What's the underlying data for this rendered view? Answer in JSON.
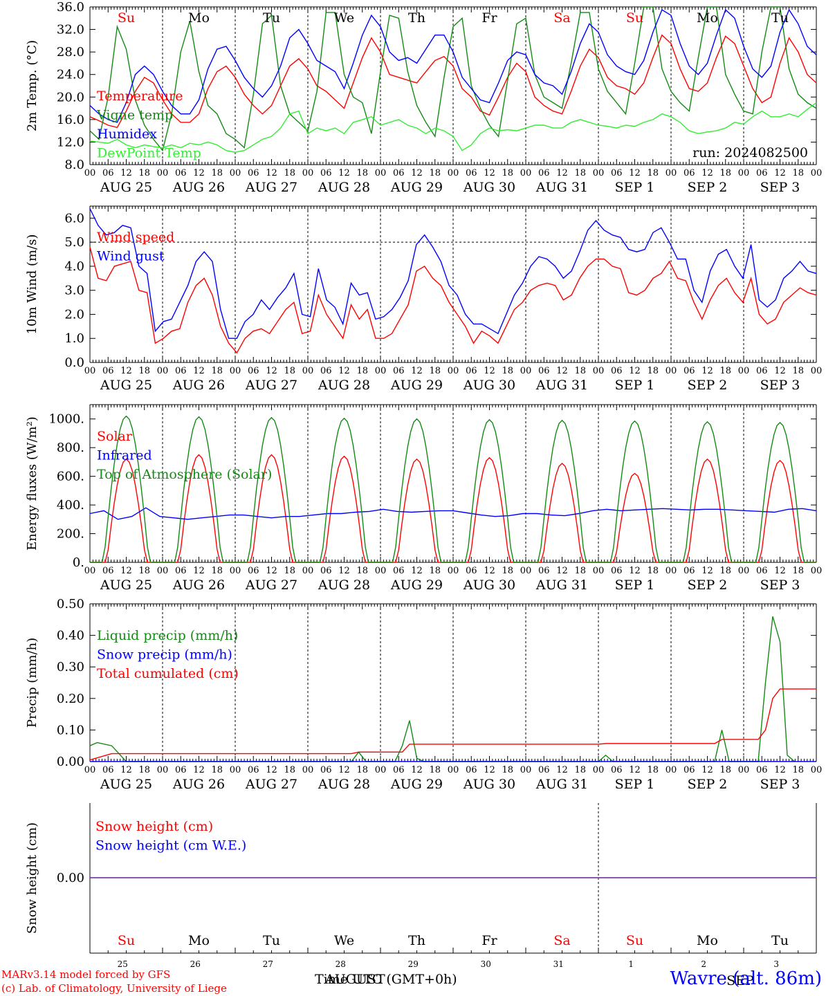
{
  "meta": {
    "run_label": "run: 2024082500",
    "credit_line1": "MARv3.14 model forced by GFS",
    "credit_line2": "(c) Lab. of Climatology, University of Liege",
    "time_axis_title": "Time UTC (GMT+0h)",
    "time_axis_under": "AUGUST",
    "time_axis_under2": "SEP",
    "station": "Wavre (alt. 86m)"
  },
  "colors": {
    "red": "#ff0000",
    "blue": "#0000ff",
    "darkgreen": "#138a13",
    "lightgreen": "#33ee33",
    "purple": "#7b3fa0"
  },
  "days": {
    "weekday_labels": [
      "Su",
      "Mo",
      "Tu",
      "We",
      "Th",
      "Fr",
      "Sa",
      "Su",
      "Mo",
      "Tu"
    ],
    "weekday_colors": [
      "red",
      "black",
      "black",
      "black",
      "black",
      "black",
      "red",
      "red",
      "black",
      "black"
    ],
    "date_labels": [
      "AUG 25",
      "AUG 26",
      "AUG 27",
      "AUG 28",
      "AUG 29",
      "AUG 30",
      "AUG 31",
      "SEP  1",
      "SEP  2",
      "SEP  3"
    ],
    "hour_ticks": [
      "00",
      "06",
      "12",
      "18"
    ],
    "final_tick": "00",
    "day_numbers": [
      "25",
      "26",
      "27",
      "28",
      "29",
      "30",
      "31",
      "1",
      "2",
      "3"
    ]
  },
  "chart_data": [
    {
      "type": "line",
      "ylabel": "2m Temp. (°C)",
      "ylim": [
        8,
        36
      ],
      "yticks": [
        "8.0",
        "12.0",
        "16.0",
        "20.0",
        "24.0",
        "28.0",
        "32.0",
        "36.0"
      ],
      "grid": "vertical dashed day lines",
      "legend_position": "left",
      "series": [
        {
          "name": "Temperature",
          "color": "red",
          "values": [
            16.5,
            15.8,
            15.0,
            14.6,
            17.5,
            21.0,
            23.5,
            22.5,
            19.5,
            17.0,
            15.5,
            15.5,
            17.0,
            21.5,
            24.5,
            25.5,
            23.5,
            20.5,
            18.5,
            17.0,
            18.5,
            22.0,
            25.5,
            26.8,
            25.0,
            22.0,
            21.0,
            19.5,
            18.0,
            22.5,
            27.0,
            30.5,
            28.0,
            24.0,
            23.5,
            23.0,
            22.5,
            24.5,
            26.5,
            27.2,
            25.5,
            21.5,
            20.0,
            17.5,
            16.8,
            20.0,
            23.5,
            26.0,
            24.5,
            20.0,
            18.5,
            17.5,
            17.0,
            21.0,
            25.5,
            28.5,
            27.0,
            23.5,
            22.0,
            21.5,
            20.5,
            22.5,
            27.0,
            31.0,
            29.5,
            25.0,
            21.5,
            21.0,
            22.5,
            27.0,
            30.8,
            29.5,
            25.5,
            21.5,
            19.0,
            20.0,
            26.0,
            30.5,
            28.0,
            24.0,
            22.5
          ]
        },
        {
          "name": "Vigne temp",
          "color": "darkgreen",
          "values": [
            14.0,
            12.5,
            20.0,
            32.5,
            28.5,
            19.5,
            15.0,
            12.5,
            10.5,
            17.0,
            28.0,
            33.5,
            24.5,
            18.5,
            17.0,
            13.5,
            12.5,
            11.0,
            20.5,
            33.0,
            34.5,
            22.0,
            17.0,
            15.5,
            14.0,
            21.0,
            35.0,
            35.0,
            24.0,
            20.0,
            19.0,
            13.5,
            24.5,
            34.5,
            34.0,
            24.5,
            18.5,
            15.5,
            13.0,
            23.5,
            32.5,
            34.0,
            22.0,
            18.0,
            15.0,
            13.0,
            23.0,
            33.0,
            34.0,
            24.0,
            20.0,
            19.0,
            18.0,
            26.0,
            35.0,
            35.0,
            25.0,
            21.0,
            19.0,
            17.0,
            26.0,
            36.0,
            36.0,
            25.0,
            21.0,
            19.0,
            17.5,
            27.0,
            36.0,
            36.0,
            24.0,
            20.5,
            17.5,
            17.0,
            28.0,
            36.0,
            36.0,
            25.0,
            20.5,
            19.0,
            18.0
          ]
        },
        {
          "name": "Humidex",
          "color": "blue",
          "values": [
            18.5,
            17.0,
            16.0,
            15.5,
            19.0,
            24.0,
            25.5,
            24.0,
            21.0,
            18.5,
            17.0,
            17.0,
            19.5,
            25.0,
            28.5,
            29.0,
            26.5,
            23.5,
            21.5,
            20.0,
            22.0,
            25.5,
            30.5,
            32.0,
            29.5,
            26.5,
            25.5,
            24.5,
            21.5,
            26.0,
            31.0,
            34.5,
            32.5,
            28.0,
            26.5,
            27.0,
            26.0,
            28.5,
            31.0,
            31.0,
            28.0,
            23.5,
            21.5,
            19.5,
            19.0,
            22.5,
            26.5,
            28.0,
            27.5,
            24.0,
            22.5,
            22.0,
            20.5,
            24.5,
            29.5,
            33.0,
            31.5,
            27.5,
            25.5,
            24.5,
            24.0,
            26.5,
            31.5,
            35.5,
            34.5,
            29.5,
            25.5,
            24.0,
            26.0,
            31.0,
            35.5,
            34.0,
            29.0,
            25.0,
            23.5,
            25.5,
            31.5,
            35.5,
            33.0,
            29.0,
            27.5
          ]
        },
        {
          "name": "DewPoint Temp",
          "color": "lightgreen",
          "values": [
            12.2,
            12.0,
            11.8,
            12.5,
            11.5,
            11.0,
            11.5,
            11.2,
            11.0,
            11.5,
            11.0,
            11.8,
            11.5,
            12.0,
            11.5,
            10.5,
            10.2,
            10.5,
            11.5,
            12.5,
            13.0,
            14.5,
            17.0,
            17.5,
            13.5,
            14.5,
            14.0,
            14.5,
            13.5,
            15.5,
            16.0,
            16.5,
            15.0,
            15.5,
            16.0,
            15.0,
            14.5,
            13.5,
            14.5,
            14.0,
            13.0,
            10.5,
            11.5,
            13.5,
            14.5,
            14.0,
            14.2,
            14.0,
            14.5,
            15.0,
            15.0,
            14.5,
            14.5,
            15.5,
            16.0,
            15.5,
            15.0,
            14.8,
            14.5,
            15.0,
            14.8,
            15.5,
            16.0,
            17.0,
            16.5,
            15.5,
            14.0,
            13.5,
            13.8,
            14.0,
            14.5,
            15.5,
            15.2,
            16.5,
            17.5,
            16.5,
            16.5,
            17.0,
            16.5,
            17.8,
            19.0
          ]
        }
      ]
    },
    {
      "type": "line",
      "ylabel": "10m Wind (m/s)",
      "ylim": [
        0,
        6.5
      ],
      "yticks": [
        "0.0",
        "1.0",
        "2.0",
        "3.0",
        "4.0",
        "5.0",
        "6.0"
      ],
      "reference_line": 5.0,
      "legend_position": "left",
      "series": [
        {
          "name": "Wind speed",
          "color": "red",
          "values": [
            4.8,
            3.5,
            3.4,
            4.0,
            4.1,
            4.2,
            3.0,
            2.9,
            0.8,
            1.0,
            1.3,
            1.4,
            2.5,
            3.2,
            3.5,
            2.8,
            1.5,
            0.8,
            0.4,
            1.0,
            1.3,
            1.4,
            1.2,
            1.7,
            2.2,
            2.5,
            1.2,
            1.3,
            2.8,
            2.0,
            1.5,
            1.0,
            2.4,
            1.8,
            2.2,
            1.0,
            1.0,
            1.2,
            1.8,
            2.4,
            3.8,
            4.0,
            3.5,
            3.2,
            2.5,
            2.0,
            1.5,
            0.8,
            1.3,
            1.1,
            0.8,
            1.5,
            2.2,
            2.5,
            3.0,
            3.2,
            3.3,
            3.2,
            2.6,
            2.8,
            3.5,
            4.0,
            4.3,
            4.3,
            4.0,
            3.9,
            2.9,
            2.8,
            3.0,
            3.5,
            3.7,
            4.2,
            3.5,
            3.4,
            2.5,
            1.8,
            2.6,
            3.2,
            3.5,
            2.9,
            2.5,
            3.5,
            2.0,
            1.6,
            1.8,
            2.5,
            2.8,
            3.1,
            2.9,
            2.8
          ]
        },
        {
          "name": "Wind gust",
          "color": "blue",
          "values": [
            6.4,
            5.7,
            5.3,
            5.4,
            5.7,
            5.6,
            4.0,
            3.7,
            1.3,
            1.7,
            1.8,
            2.5,
            3.2,
            4.2,
            4.6,
            4.2,
            2.2,
            1.0,
            1.0,
            1.7,
            2.0,
            2.6,
            2.2,
            2.7,
            3.1,
            3.7,
            2.0,
            1.9,
            3.9,
            2.6,
            2.3,
            1.6,
            3.3,
            2.8,
            2.9,
            1.8,
            1.9,
            2.2,
            2.7,
            3.4,
            4.9,
            5.3,
            4.8,
            4.2,
            3.2,
            2.8,
            2.0,
            1.6,
            1.6,
            1.4,
            1.2,
            2.0,
            2.8,
            3.3,
            4.0,
            4.4,
            4.3,
            4.0,
            3.5,
            3.8,
            4.6,
            5.5,
            5.9,
            5.5,
            5.3,
            5.2,
            4.7,
            4.6,
            4.7,
            5.4,
            5.6,
            5.0,
            4.3,
            4.3,
            3.0,
            2.5,
            3.8,
            4.5,
            4.7,
            4.0,
            3.5,
            4.9,
            2.6,
            2.3,
            2.6,
            3.5,
            3.8,
            4.2,
            3.8,
            3.7
          ]
        }
      ]
    },
    {
      "type": "line",
      "ylabel": "Energy fluxes (W/m²)",
      "ylim": [
        0,
        1100
      ],
      "yticks": [
        "0.",
        "200.",
        "400.",
        "600.",
        "800.",
        "1000."
      ],
      "legend_position": "left",
      "series": [
        {
          "name": "Solar",
          "color": "red",
          "day_peaks": [
            720,
            750,
            750,
            740,
            720,
            730,
            690,
            620,
            720,
            710
          ]
        },
        {
          "name": "Infrared",
          "color": "blue",
          "values": [
            340,
            360,
            300,
            320,
            380,
            320,
            310,
            300,
            310,
            320,
            330,
            330,
            320,
            310,
            320,
            320,
            330,
            340,
            340,
            350,
            355,
            370,
            355,
            350,
            355,
            360,
            360,
            345,
            330,
            320,
            325,
            340,
            340,
            330,
            325,
            340,
            360,
            370,
            360,
            365,
            370,
            375,
            370,
            365,
            370,
            370,
            365,
            360,
            355,
            350,
            370,
            375,
            360
          ]
        },
        {
          "name": "Top of Atmosphere (Solar)",
          "color": "darkgreen",
          "day_peaks": [
            1020,
            1015,
            1010,
            1005,
            1000,
            995,
            990,
            985,
            980,
            975
          ]
        }
      ]
    },
    {
      "type": "line",
      "ylabel": "Precip (mm/h)",
      "ylim": [
        0,
        0.5
      ],
      "yticks": [
        "0.00",
        "0.10",
        "0.20",
        "0.30",
        "0.40",
        "0.50"
      ],
      "legend_position": "left",
      "series": [
        {
          "name": "Liquid precip (mm/h)",
          "color": "darkgreen",
          "points": [
            [
              0,
              0.05
            ],
            [
              1,
              0.06
            ],
            [
              3,
              0.05
            ],
            [
              5,
              0
            ],
            [
              36,
              0
            ],
            [
              37,
              0.03
            ],
            [
              38,
              0
            ],
            [
              42,
              0
            ],
            [
              43,
              0.05
            ],
            [
              44,
              0.13
            ],
            [
              45,
              0.01
            ],
            [
              46,
              0
            ],
            [
              70,
              0
            ],
            [
              71,
              0.02
            ],
            [
              72,
              0
            ],
            [
              86,
              0
            ],
            [
              87,
              0.1
            ],
            [
              88,
              0
            ],
            [
              92,
              0
            ],
            [
              93,
              0.25
            ],
            [
              94,
              0.46
            ],
            [
              95,
              0.38
            ],
            [
              96,
              0.02
            ],
            [
              97,
              0
            ]
          ]
        },
        {
          "name": "Snow precip (mm/h)",
          "color": "blue",
          "points": [
            [
              0,
              0
            ],
            [
              100,
              0
            ]
          ]
        },
        {
          "name": "Total cumulated (cm)",
          "color": "red",
          "points": [
            [
              0,
              0.005
            ],
            [
              3,
              0.025
            ],
            [
              36,
              0.025
            ],
            [
              37,
              0.03
            ],
            [
              43,
              0.03
            ],
            [
              44,
              0.055
            ],
            [
              70,
              0.055
            ],
            [
              71,
              0.057
            ],
            [
              86,
              0.057
            ],
            [
              87,
              0.07
            ],
            [
              92,
              0.07
            ],
            [
              93,
              0.1
            ],
            [
              94,
              0.2
            ],
            [
              95,
              0.23
            ],
            [
              100,
              0.23
            ]
          ]
        }
      ]
    },
    {
      "type": "line",
      "ylabel": "Snow height (cm)",
      "yticks": [
        "0.00"
      ],
      "legend_position": "left",
      "series": [
        {
          "name": "Snow height (cm)",
          "color": "red",
          "values": [
            0,
            0
          ]
        },
        {
          "name": "Snow height (cm W.E.)",
          "color": "blue",
          "values": [
            0,
            0
          ]
        }
      ]
    }
  ]
}
